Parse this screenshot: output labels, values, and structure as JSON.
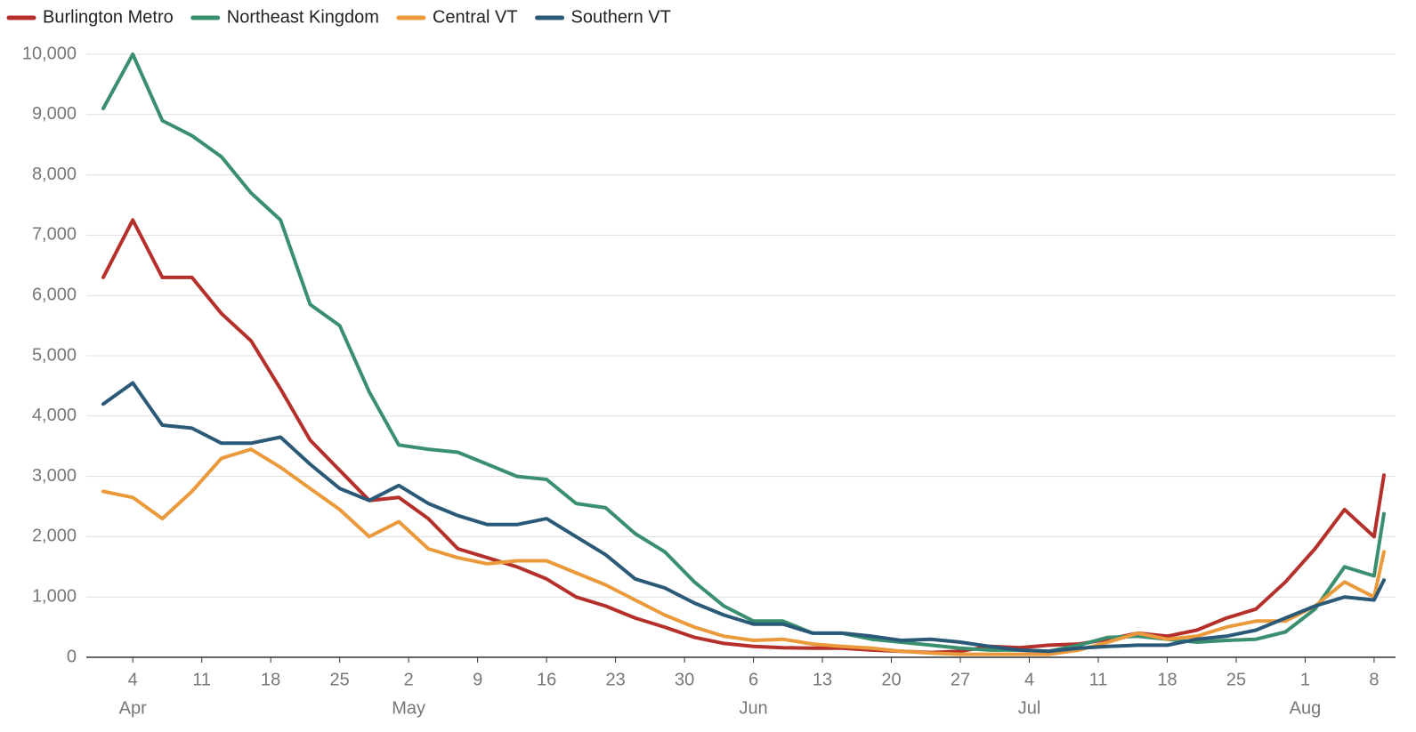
{
  "chart_data": {
    "type": "line",
    "x": [
      "04-01",
      "04-04",
      "04-07",
      "04-10",
      "04-13",
      "04-16",
      "04-19",
      "04-22",
      "04-25",
      "04-28",
      "05-01",
      "05-04",
      "05-07",
      "05-10",
      "05-13",
      "05-16",
      "05-19",
      "05-22",
      "05-25",
      "05-28",
      "05-31",
      "06-03",
      "06-06",
      "06-09",
      "06-12",
      "06-15",
      "06-18",
      "06-21",
      "06-24",
      "06-27",
      "06-30",
      "07-03",
      "07-06",
      "07-09",
      "07-12",
      "07-15",
      "07-18",
      "07-21",
      "07-24",
      "07-27",
      "07-30",
      "08-02",
      "08-05",
      "08-08",
      "08-09"
    ],
    "series": [
      {
        "name": "Burlington Metro",
        "color": "#b5302a",
        "values": [
          6300,
          7250,
          6300,
          6300,
          5700,
          5250,
          4450,
          3600,
          3100,
          2600,
          2650,
          2300,
          1800,
          1650,
          1500,
          1300,
          1000,
          850,
          650,
          500,
          330,
          230,
          180,
          160,
          150,
          150,
          120,
          100,
          80,
          100,
          180,
          160,
          200,
          220,
          300,
          400,
          350,
          450,
          650,
          800,
          1250,
          1800,
          2450,
          2000,
          3020
        ]
      },
      {
        "name": "Northeast Kingdom",
        "color": "#3a8f6e",
        "values": [
          9100,
          10000,
          8900,
          8650,
          8300,
          7700,
          7250,
          5850,
          5500,
          4400,
          3520,
          3450,
          3400,
          3200,
          3000,
          2950,
          2550,
          2480,
          2050,
          1750,
          1250,
          850,
          600,
          600,
          400,
          400,
          300,
          250,
          200,
          150,
          120,
          120,
          100,
          200,
          330,
          350,
          300,
          250,
          280,
          300,
          420,
          800,
          1500,
          1350,
          2380
        ]
      },
      {
        "name": "Central VT",
        "color": "#eb9a3b",
        "values": [
          2750,
          2650,
          2300,
          2750,
          3300,
          3450,
          3150,
          2800,
          2450,
          2000,
          2250,
          1800,
          1650,
          1550,
          1600,
          1600,
          1400,
          1200,
          950,
          700,
          500,
          350,
          280,
          300,
          220,
          180,
          150,
          100,
          70,
          50,
          50,
          50,
          50,
          120,
          250,
          400,
          300,
          350,
          500,
          600,
          600,
          850,
          1250,
          1000,
          1750
        ]
      },
      {
        "name": "Southern VT",
        "color": "#2a5a78",
        "values": [
          4200,
          4550,
          3850,
          3800,
          3550,
          3550,
          3650,
          3200,
          2800,
          2600,
          2850,
          2550,
          2350,
          2200,
          2200,
          2300,
          2000,
          1700,
          1300,
          1150,
          900,
          700,
          550,
          550,
          400,
          400,
          350,
          280,
          300,
          250,
          180,
          120,
          100,
          150,
          180,
          200,
          200,
          300,
          350,
          450,
          650,
          850,
          1000,
          950,
          1280
        ]
      }
    ],
    "xlim": [
      "04-01",
      "08-09"
    ],
    "xticks": [
      {
        "value": "04-04",
        "label": "4"
      },
      {
        "value": "04-11",
        "label": "11"
      },
      {
        "value": "04-18",
        "label": "18"
      },
      {
        "value": "04-25",
        "label": "25"
      },
      {
        "value": "05-02",
        "label": "2"
      },
      {
        "value": "05-09",
        "label": "9"
      },
      {
        "value": "05-16",
        "label": "16"
      },
      {
        "value": "05-23",
        "label": "23"
      },
      {
        "value": "05-30",
        "label": "30"
      },
      {
        "value": "06-06",
        "label": "6"
      },
      {
        "value": "06-13",
        "label": "13"
      },
      {
        "value": "06-20",
        "label": "20"
      },
      {
        "value": "06-27",
        "label": "27"
      },
      {
        "value": "07-04",
        "label": "4"
      },
      {
        "value": "07-11",
        "label": "11"
      },
      {
        "value": "07-18",
        "label": "18"
      },
      {
        "value": "07-25",
        "label": "25"
      },
      {
        "value": "08-01",
        "label": "1"
      },
      {
        "value": "08-08",
        "label": "8"
      }
    ],
    "month_labels": [
      {
        "value": "04-04",
        "label": "Apr"
      },
      {
        "value": "05-02",
        "label": "May"
      },
      {
        "value": "06-06",
        "label": "Jun"
      },
      {
        "value": "07-04",
        "label": "Jul"
      },
      {
        "value": "08-01",
        "label": "Aug"
      }
    ],
    "ylim": [
      0,
      10000
    ],
    "yticks": [
      0,
      {
        "value": 1000,
        "label": "1,000"
      },
      {
        "value": 2000,
        "label": "2,000"
      },
      {
        "value": 3000,
        "label": "3,000"
      },
      {
        "value": 4000,
        "label": "4,000"
      },
      {
        "value": 5000,
        "label": "5,000"
      },
      {
        "value": 6000,
        "label": "6,000"
      },
      {
        "value": 7000,
        "label": "7,000"
      },
      {
        "value": 8000,
        "label": "8,000"
      },
      {
        "value": 9000,
        "label": "9,000"
      },
      {
        "value": 10000,
        "label": "10,000"
      }
    ],
    "grid": true,
    "legend": "top-left"
  }
}
